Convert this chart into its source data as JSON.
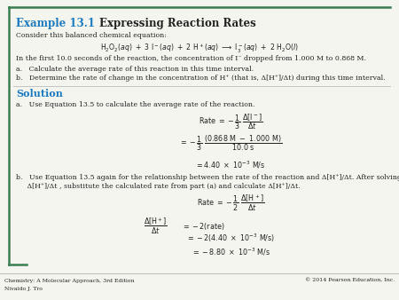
{
  "title_example": "Example 13.1",
  "title_main": "Expressing Reaction Rates",
  "title_color": "#1a7abf",
  "bg_color": "#f5f5f0",
  "border_color": "#3a7d52",
  "body_text_color": "#222222",
  "solution_color": "#1a7abf",
  "footer_left1": "Chemistry: A Molecular Approach, 3rd Edition",
  "footer_left2": "Nivaldo J. Tro",
  "footer_right": "© 2014 Pearson Education, Inc.",
  "consider_line": "Consider this balanced chemical equation:",
  "context_line": "In the first 10.0 seconds of the reaction, the concentration of I⁻ dropped from 1.000 M to 0.868 M.",
  "a_question": "a.   Calculate the average rate of this reaction in this time interval.",
  "b_question": "b.   Determine the rate of change in the concentration of H⁺ (that is, Δ[H⁺]/Δt) during this time interval.",
  "solution_label": "Solution",
  "a_solution_intro": "a.   Use Equation 13.5 to calculate the average rate of the reaction.",
  "b_solution_intro1": "b.   Use Equation 13.5 again for the relationship between the rate of the reaction and Δ[H⁺]/Δt. After solving for",
  "b_solution_intro2": "     Δ[H⁺]/Δt , substitute the calculated rate from part (a) and calculate Δ[H⁺]/Δt.",
  "fs_title": 8.5,
  "fs_body": 5.6,
  "fs_math": 5.8,
  "fs_footer": 4.5
}
